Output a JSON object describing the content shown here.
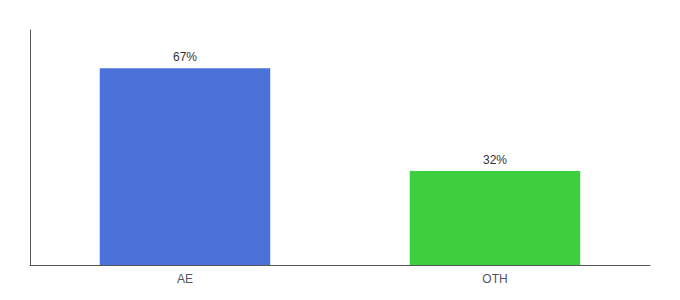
{
  "chart_data": {
    "type": "bar",
    "categories": [
      "AE",
      "OTH"
    ],
    "values": [
      67,
      32
    ],
    "value_labels": [
      "67%",
      "32%"
    ],
    "colors": [
      "#4a72d9",
      "#3ecf3e"
    ],
    "ylim": [
      0,
      80
    ],
    "grid": false,
    "tick_labels": "x",
    "data_labels": true
  }
}
